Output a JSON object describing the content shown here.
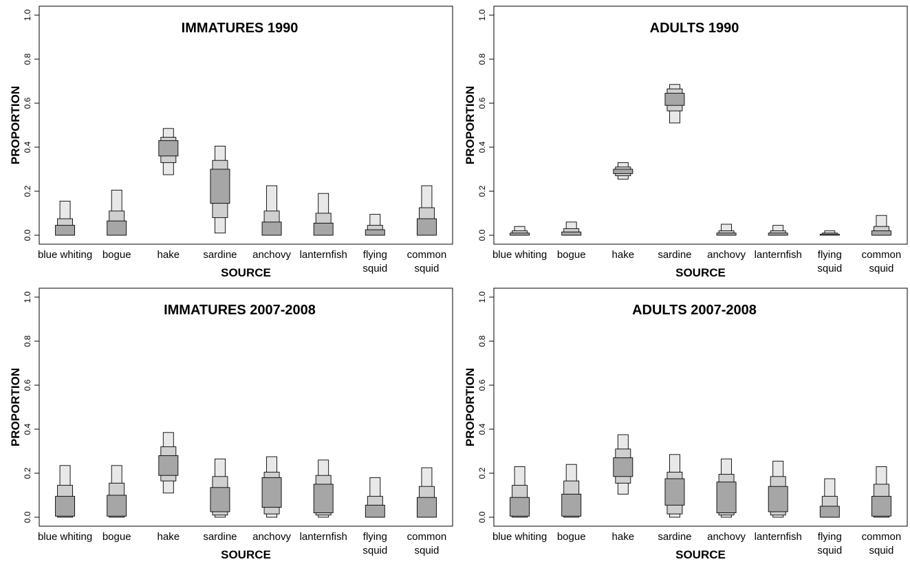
{
  "colors": {
    "box_50": "#a6a6a6",
    "box_75": "#cfcfcf",
    "box_95": "#e8e8e8",
    "stroke": "#000000"
  },
  "chart_data": [
    {
      "type": "box",
      "title": "IMMATURES 1990",
      "xlabel": "SOURCE",
      "ylabel": "PROPORTION",
      "ylim": [
        0,
        1.0
      ],
      "yticks": [
        "0.0",
        "0.2",
        "0.4",
        "0.6",
        "0.8",
        "1.0"
      ],
      "categories": [
        [
          "blue whiting"
        ],
        [
          "bogue"
        ],
        [
          "hake"
        ],
        [
          "sardine"
        ],
        [
          "anchovy"
        ],
        [
          "lanternfish"
        ],
        [
          "flying",
          "squid"
        ],
        [
          "common",
          "squid"
        ]
      ],
      "credible_intervals": [
        {
          "ci50": [
            0.0,
            0.045
          ],
          "ci75": [
            0.0,
            0.075
          ],
          "ci95": [
            0.0,
            0.155
          ]
        },
        {
          "ci50": [
            0.0,
            0.065
          ],
          "ci75": [
            0.0,
            0.11
          ],
          "ci95": [
            0.0,
            0.205
          ]
        },
        {
          "ci50": [
            0.36,
            0.43
          ],
          "ci75": [
            0.33,
            0.445
          ],
          "ci95": [
            0.275,
            0.485
          ]
        },
        {
          "ci50": [
            0.145,
            0.3
          ],
          "ci75": [
            0.08,
            0.34
          ],
          "ci95": [
            0.01,
            0.405
          ]
        },
        {
          "ci50": [
            0.0,
            0.06
          ],
          "ci75": [
            0.0,
            0.11
          ],
          "ci95": [
            0.0,
            0.225
          ]
        },
        {
          "ci50": [
            0.0,
            0.055
          ],
          "ci75": [
            0.0,
            0.1
          ],
          "ci95": [
            0.0,
            0.19
          ]
        },
        {
          "ci50": [
            0.0,
            0.025
          ],
          "ci75": [
            0.0,
            0.045
          ],
          "ci95": [
            0.0,
            0.095
          ]
        },
        {
          "ci50": [
            0.0,
            0.075
          ],
          "ci75": [
            0.0,
            0.125
          ],
          "ci95": [
            0.0,
            0.225
          ]
        }
      ]
    },
    {
      "type": "box",
      "title": "ADULTS 1990",
      "xlabel": "SOURCE",
      "ylabel": "PROPORTION",
      "ylim": [
        0,
        1.0
      ],
      "yticks": [
        "0.0",
        "0.2",
        "0.4",
        "0.6",
        "0.8",
        "1.0"
      ],
      "categories": [
        [
          "blue whiting"
        ],
        [
          "bogue"
        ],
        [
          "hake"
        ],
        [
          "sardine"
        ],
        [
          "anchovy"
        ],
        [
          "lanternfish"
        ],
        [
          "flying",
          "squid"
        ],
        [
          "common",
          "squid"
        ]
      ],
      "credible_intervals": [
        {
          "ci50": [
            0.0,
            0.01
          ],
          "ci75": [
            0.0,
            0.02
          ],
          "ci95": [
            0.0,
            0.04
          ]
        },
        {
          "ci50": [
            0.0,
            0.015
          ],
          "ci75": [
            0.0,
            0.03
          ],
          "ci95": [
            0.0,
            0.06
          ]
        },
        {
          "ci50": [
            0.28,
            0.3
          ],
          "ci75": [
            0.27,
            0.31
          ],
          "ci95": [
            0.255,
            0.33
          ]
        },
        {
          "ci50": [
            0.59,
            0.645
          ],
          "ci75": [
            0.565,
            0.665
          ],
          "ci95": [
            0.51,
            0.685
          ]
        },
        {
          "ci50": [
            0.0,
            0.01
          ],
          "ci75": [
            0.0,
            0.02
          ],
          "ci95": [
            0.0,
            0.05
          ]
        },
        {
          "ci50": [
            0.0,
            0.01
          ],
          "ci75": [
            0.0,
            0.02
          ],
          "ci95": [
            0.0,
            0.045
          ]
        },
        {
          "ci50": [
            0.0,
            0.005
          ],
          "ci75": [
            0.0,
            0.01
          ],
          "ci95": [
            0.0,
            0.02
          ]
        },
        {
          "ci50": [
            0.0,
            0.02
          ],
          "ci75": [
            0.0,
            0.04
          ],
          "ci95": [
            0.0,
            0.09
          ]
        }
      ]
    },
    {
      "type": "box",
      "title": "IMMATURES 2007-2008",
      "xlabel": "SOURCE",
      "ylabel": "PROPORTION",
      "ylim": [
        0,
        1.0
      ],
      "yticks": [
        "0.0",
        "0.2",
        "0.4",
        "0.6",
        "0.8",
        "1.0"
      ],
      "categories": [
        [
          "blue whiting"
        ],
        [
          "bogue"
        ],
        [
          "hake"
        ],
        [
          "sardine"
        ],
        [
          "anchovy"
        ],
        [
          "lanternfish"
        ],
        [
          "flying",
          "squid"
        ],
        [
          "common",
          "squid"
        ]
      ],
      "credible_intervals": [
        {
          "ci50": [
            0.005,
            0.095
          ],
          "ci75": [
            0.0,
            0.145
          ],
          "ci95": [
            0.0,
            0.235
          ]
        },
        {
          "ci50": [
            0.005,
            0.1
          ],
          "ci75": [
            0.0,
            0.155
          ],
          "ci95": [
            0.0,
            0.235
          ]
        },
        {
          "ci50": [
            0.19,
            0.28
          ],
          "ci75": [
            0.165,
            0.32
          ],
          "ci95": [
            0.11,
            0.385
          ]
        },
        {
          "ci50": [
            0.025,
            0.135
          ],
          "ci75": [
            0.01,
            0.185
          ],
          "ci95": [
            0.0,
            0.265
          ]
        },
        {
          "ci50": [
            0.045,
            0.18
          ],
          "ci75": [
            0.015,
            0.205
          ],
          "ci95": [
            0.0,
            0.275
          ]
        },
        {
          "ci50": [
            0.02,
            0.15
          ],
          "ci75": [
            0.01,
            0.19
          ],
          "ci95": [
            0.0,
            0.26
          ]
        },
        {
          "ci50": [
            0.0,
            0.055
          ],
          "ci75": [
            0.0,
            0.095
          ],
          "ci95": [
            0.0,
            0.18
          ]
        },
        {
          "ci50": [
            0.0,
            0.09
          ],
          "ci75": [
            0.0,
            0.14
          ],
          "ci95": [
            0.0,
            0.225
          ]
        }
      ]
    },
    {
      "type": "box",
      "title": "ADULTS 2007-2008",
      "xlabel": "SOURCE",
      "ylabel": "PROPORTION",
      "ylim": [
        0,
        1.0
      ],
      "yticks": [
        "0.0",
        "0.2",
        "0.4",
        "0.6",
        "0.8",
        "1.0"
      ],
      "categories": [
        [
          "blue whiting"
        ],
        [
          "bogue"
        ],
        [
          "hake"
        ],
        [
          "sardine"
        ],
        [
          "anchovy"
        ],
        [
          "lanternfish"
        ],
        [
          "flying",
          "squid"
        ],
        [
          "common",
          "squid"
        ]
      ],
      "credible_intervals": [
        {
          "ci50": [
            0.005,
            0.09
          ],
          "ci75": [
            0.0,
            0.145
          ],
          "ci95": [
            0.0,
            0.23
          ]
        },
        {
          "ci50": [
            0.005,
            0.105
          ],
          "ci75": [
            0.0,
            0.165
          ],
          "ci95": [
            0.0,
            0.24
          ]
        },
        {
          "ci50": [
            0.185,
            0.27
          ],
          "ci75": [
            0.155,
            0.31
          ],
          "ci95": [
            0.105,
            0.375
          ]
        },
        {
          "ci50": [
            0.055,
            0.175
          ],
          "ci75": [
            0.015,
            0.205
          ],
          "ci95": [
            0.0,
            0.285
          ]
        },
        {
          "ci50": [
            0.02,
            0.16
          ],
          "ci75": [
            0.01,
            0.195
          ],
          "ci95": [
            0.0,
            0.265
          ]
        },
        {
          "ci50": [
            0.025,
            0.14
          ],
          "ci75": [
            0.01,
            0.185
          ],
          "ci95": [
            0.0,
            0.255
          ]
        },
        {
          "ci50": [
            0.0,
            0.05
          ],
          "ci75": [
            0.0,
            0.095
          ],
          "ci95": [
            0.0,
            0.175
          ]
        },
        {
          "ci50": [
            0.005,
            0.095
          ],
          "ci75": [
            0.0,
            0.15
          ],
          "ci95": [
            0.0,
            0.23
          ]
        }
      ]
    }
  ]
}
